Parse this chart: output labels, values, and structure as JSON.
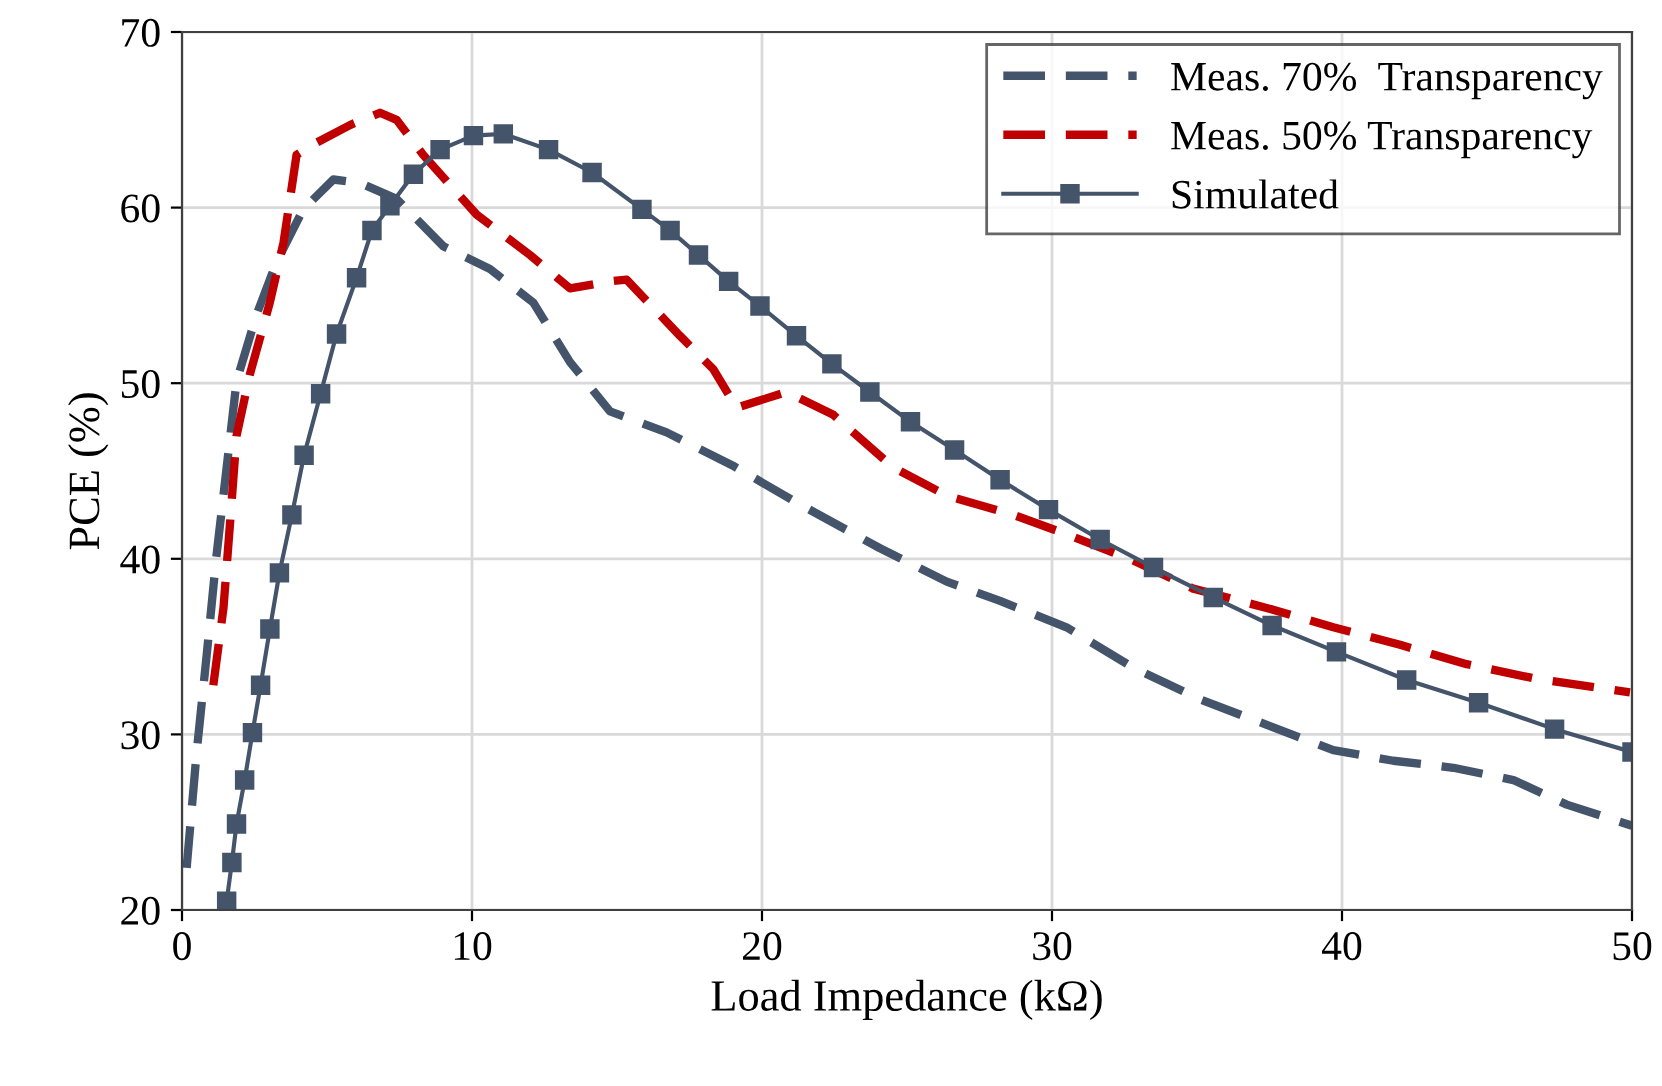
{
  "chart_data": {
    "type": "line",
    "xlabel": "Load Impedance (kΩ)",
    "ylabel": "PCE (%)",
    "xlim": [
      0,
      50
    ],
    "ylim": [
      20,
      70
    ],
    "xticks": [
      0,
      10,
      20,
      30,
      40,
      50
    ],
    "yticks": [
      20,
      30,
      40,
      50,
      60,
      70
    ],
    "grid": true,
    "legend": "top right",
    "series": [
      {
        "name": "Meas. 70%  Transparency",
        "color": "#44546a",
        "line_style": "dashed",
        "marker": "none",
        "x": [
          0.16,
          0.5,
          0.85,
          1.19,
          1.54,
          1.88,
          2.57,
          3.26,
          4.18,
          5.22,
          6.14,
          7.4,
          9.01,
          10.62,
          12.11,
          13.38,
          14.76,
          16.71,
          19.0,
          21.31,
          24.07,
          26.37,
          28.21,
          30.5,
          32.8,
          35.1,
          37.63,
          39.7,
          41.77,
          43.84,
          45.91,
          47.75,
          50.0
        ],
        "values": [
          22.4,
          28.9,
          34.5,
          40.2,
          45.2,
          50.1,
          53.9,
          56.9,
          59.9,
          61.6,
          61.4,
          60.5,
          57.8,
          56.5,
          54.6,
          51.2,
          48.4,
          47.2,
          45.3,
          43.1,
          40.6,
          38.7,
          37.6,
          36.1,
          33.8,
          32.0,
          30.4,
          29.1,
          28.5,
          28.1,
          27.4,
          26.0,
          24.8
        ]
      },
      {
        "name": "Meas. 50% Transparency",
        "color": "#c00000",
        "line_style": "dashed",
        "marker": "none",
        "x": [
          1.08,
          1.43,
          1.66,
          1.88,
          2.34,
          3.03,
          3.5,
          3.95,
          4.64,
          5.79,
          6.83,
          7.4,
          8.32,
          10.16,
          12.0,
          13.38,
          14.76,
          15.33,
          17.17,
          18.32,
          19.12,
          20.85,
          22.46,
          24.53,
          26.37,
          28.67,
          30.5,
          32.8,
          34.87,
          37.4,
          39.7,
          42.0,
          44.3,
          46.6,
          49.93
        ],
        "values": [
          32.8,
          37.2,
          42.1,
          47.0,
          50.5,
          54.6,
          58.0,
          63.0,
          63.7,
          64.7,
          65.4,
          65.0,
          63.0,
          59.6,
          57.3,
          55.4,
          55.8,
          55.9,
          52.7,
          50.8,
          48.6,
          49.5,
          48.2,
          45.2,
          43.6,
          42.5,
          41.4,
          39.9,
          38.3,
          37.2,
          36.1,
          35.1,
          34.0,
          33.2,
          32.4
        ]
      },
      {
        "name": "Simulated",
        "color": "#44546a",
        "line_style": "solid",
        "marker": "square",
        "x": [
          1.54,
          1.72,
          1.88,
          2.16,
          2.43,
          2.71,
          3.03,
          3.36,
          3.79,
          4.21,
          4.78,
          5.33,
          6.02,
          6.55,
          7.17,
          7.98,
          8.9,
          10.05,
          11.08,
          12.64,
          14.14,
          15.86,
          16.83,
          17.81,
          18.85,
          19.93,
          21.19,
          22.41,
          23.72,
          25.12,
          26.64,
          28.21,
          29.88,
          31.66,
          33.5,
          35.56,
          37.59,
          39.81,
          42.23,
          44.71,
          47.33,
          50.0
        ],
        "values": [
          20.5,
          22.7,
          24.9,
          27.4,
          30.1,
          32.8,
          36.0,
          39.2,
          42.5,
          45.9,
          49.4,
          52.8,
          56.0,
          58.7,
          60.1,
          61.9,
          63.3,
          64.1,
          64.2,
          63.3,
          62.0,
          59.9,
          58.7,
          57.3,
          55.8,
          54.4,
          52.7,
          51.1,
          49.5,
          47.8,
          46.2,
          44.5,
          42.8,
          41.1,
          39.5,
          37.8,
          36.2,
          34.7,
          33.1,
          31.8,
          30.3,
          29.0
        ]
      }
    ]
  }
}
